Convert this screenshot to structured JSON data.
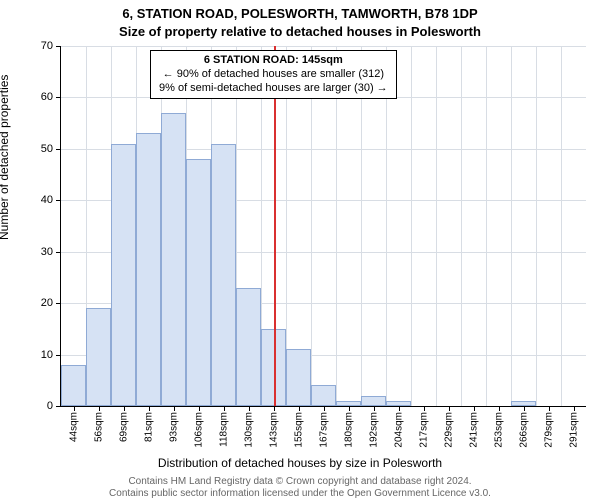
{
  "title_line1": "6, STATION ROAD, POLESWORTH, TAMWORTH, B78 1DP",
  "title_line2": "Size of property relative to detached houses in Polesworth",
  "ylabel": "Number of detached properties",
  "xlabel": "Distribution of detached houses by size in Polesworth",
  "footer_line1": "Contains HM Land Registry data © Crown copyright and database right 2024.",
  "footer_line2": "Contains public sector information licensed under the Open Government Licence v3.0.",
  "chart": {
    "type": "histogram",
    "ylim": [
      0,
      70
    ],
    "ytick_step": 10,
    "categories": [
      "44sqm",
      "56sqm",
      "69sqm",
      "81sqm",
      "93sqm",
      "106sqm",
      "118sqm",
      "130sqm",
      "143sqm",
      "155sqm",
      "167sqm",
      "180sqm",
      "192sqm",
      "204sqm",
      "217sqm",
      "229sqm",
      "241sqm",
      "253sqm",
      "266sqm",
      "279sqm",
      "291sqm"
    ],
    "values": [
      8,
      19,
      51,
      53,
      57,
      48,
      51,
      23,
      15,
      11,
      4,
      1,
      2,
      1,
      0,
      0,
      0,
      0,
      1,
      0,
      0
    ],
    "bar_fill": "#d6e2f4",
    "bar_stroke": "#8faad5",
    "grid_color": "#d8dde4",
    "background": "#ffffff",
    "marker": {
      "bin_index": 8,
      "color": "#d93030"
    },
    "annotation": {
      "line1": "6 STATION ROAD: 145sqm",
      "line2": "← 90% of detached houses are smaller (312)",
      "line3": "9% of semi-detached houses are larger (30) →"
    }
  }
}
